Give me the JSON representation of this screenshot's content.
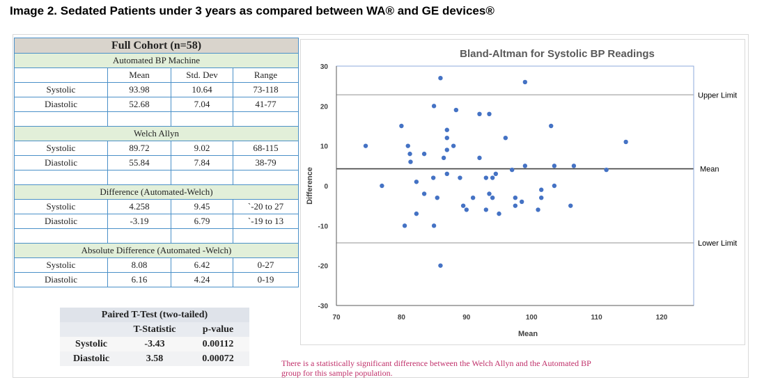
{
  "page": {
    "title": "Image 2. Sedated Patients under 3 years as compared between WA® and GE devices®",
    "note": "There is a statistically significant difference between the Welch Allyn and the Automated BP group for this sample population."
  },
  "stats_table": {
    "title": "Full Cohort (n=58)",
    "sections": [
      {
        "name": "Automated BP Machine",
        "headers": [
          "",
          "Mean",
          "Std. Dev",
          "Range"
        ],
        "rows": [
          {
            "label": "Systolic",
            "mean": "93.98",
            "sd": "10.64",
            "range": "73-118"
          },
          {
            "label": "Diastolic",
            "mean": "52.68",
            "sd": "7.04",
            "range": "41-77"
          }
        ]
      },
      {
        "name": "Welch Allyn",
        "rows": [
          {
            "label": "Systolic",
            "mean": "89.72",
            "sd": "9.02",
            "range": "68-115"
          },
          {
            "label": "Diastolic",
            "mean": "55.84",
            "sd": "7.84",
            "range": "38-79"
          }
        ]
      },
      {
        "name": "Difference (Automated-Welch)",
        "rows": [
          {
            "label": "Systolic",
            "mean": "4.258",
            "sd": "9.45",
            "range": "`-20 to 27"
          },
          {
            "label": "Diastolic",
            "mean": "-3.19",
            "sd": "6.79",
            "range": "`-19 to 13"
          }
        ]
      },
      {
        "name": "Absolute Difference (Automated -Welch)",
        "rows": [
          {
            "label": "Systolic",
            "mean": "8.08",
            "sd": "6.42",
            "range": "0-27"
          },
          {
            "label": "Diastolic",
            "mean": "6.16",
            "sd": "4.24",
            "range": "0-19"
          }
        ]
      }
    ]
  },
  "ttest_table": {
    "title": "Paired T-Test (two-tailed)",
    "headers": [
      "",
      "T-Statistic",
      "p-value"
    ],
    "rows": [
      {
        "label": "Systolic",
        "t": "-3.43",
        "p": "0.00112"
      },
      {
        "label": "Diastolic",
        "t": "3.58",
        "p": "0.00072"
      }
    ]
  },
  "chart_data": {
    "type": "scatter",
    "title": "Bland-Altman for Systolic BP Readings",
    "xlabel": "Mean",
    "ylabel": "Difference",
    "xlim": [
      70,
      125
    ],
    "ylim": [
      -30,
      30
    ],
    "xticks": [
      70,
      80,
      90,
      100,
      110,
      120
    ],
    "yticks": [
      -30,
      -20,
      -10,
      0,
      10,
      20,
      30
    ],
    "grid": false,
    "colors": {
      "points": "#4472c4",
      "mean_line": "#404040",
      "limit_lines": "#a6a6a6",
      "plot_border": "#8eaadb"
    },
    "reference_lines": [
      {
        "label": "Upper Limit",
        "y": 22.8
      },
      {
        "label": "Mean",
        "y": 4.26
      },
      {
        "label": "Lower Limit",
        "y": -14.3
      }
    ],
    "series": [
      {
        "points": [
          [
            74.5,
            10
          ],
          [
            77,
            0
          ],
          [
            80,
            15
          ],
          [
            80.5,
            -10
          ],
          [
            81,
            10
          ],
          [
            81.3,
            8
          ],
          [
            81.4,
            6
          ],
          [
            82.3,
            1
          ],
          [
            82.3,
            -7
          ],
          [
            83.5,
            -2
          ],
          [
            83.5,
            8
          ],
          [
            84.9,
            2
          ],
          [
            85,
            20
          ],
          [
            85,
            -10
          ],
          [
            85.5,
            -3
          ],
          [
            86,
            27
          ],
          [
            86,
            -20
          ],
          [
            86.5,
            7
          ],
          [
            87,
            14
          ],
          [
            87,
            12
          ],
          [
            87,
            9
          ],
          [
            87,
            3
          ],
          [
            88,
            10
          ],
          [
            88.4,
            19
          ],
          [
            89,
            2
          ],
          [
            89.5,
            -5
          ],
          [
            90,
            -6
          ],
          [
            91,
            -3
          ],
          [
            92,
            18
          ],
          [
            92,
            7
          ],
          [
            93,
            2
          ],
          [
            93,
            -6
          ],
          [
            93.5,
            18
          ],
          [
            93.5,
            -2
          ],
          [
            94,
            2
          ],
          [
            94,
            -3
          ],
          [
            94.5,
            3
          ],
          [
            95,
            -7
          ],
          [
            96,
            12
          ],
          [
            97,
            4
          ],
          [
            97.5,
            -3
          ],
          [
            97.5,
            -5
          ],
          [
            98.5,
            -4
          ],
          [
            99,
            5
          ],
          [
            99,
            26
          ],
          [
            101,
            -6
          ],
          [
            101.5,
            -1
          ],
          [
            101.5,
            -3
          ],
          [
            103,
            15
          ],
          [
            103.5,
            5
          ],
          [
            103.5,
            0
          ],
          [
            106,
            -5
          ],
          [
            106.5,
            5
          ],
          [
            111.5,
            4
          ],
          [
            114.5,
            11
          ]
        ]
      }
    ]
  }
}
